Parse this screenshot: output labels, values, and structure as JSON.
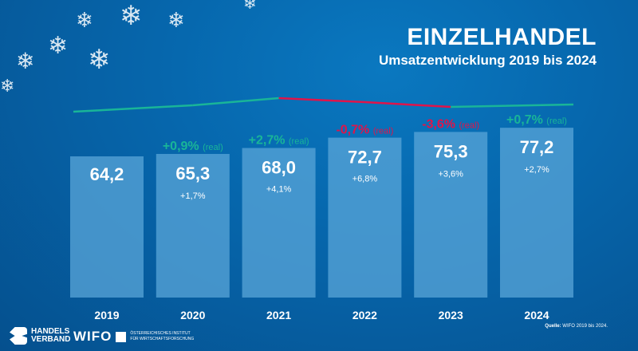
{
  "header": {
    "title": "EINZELHANDEL",
    "subtitle": "Umsatzentwicklung 2019 bis 2024"
  },
  "colors": {
    "bar": "#5aa6d8",
    "positive": "#19b598",
    "negative": "#e0144a",
    "text": "#ffffff"
  },
  "chart_data": {
    "type": "bar",
    "title": "EINZELHANDEL – Umsatzentwicklung 2019 bis 2024",
    "categories": [
      "2019",
      "2020",
      "2021",
      "2022",
      "2023",
      "2024"
    ],
    "values": [
      64.2,
      65.3,
      68.0,
      72.7,
      75.3,
      77.2
    ],
    "value_labels": [
      "64,2",
      "65,3",
      "68,0",
      "72,7",
      "75,3",
      "77,2"
    ],
    "nominal_change": [
      null,
      "+1,7%",
      "+4,1%",
      "+6,8%",
      "+3,6%",
      "+2,7%"
    ],
    "real_change": [
      null,
      "+0,9%",
      "+2,7%",
      "-0,7%",
      "-3,6%",
      "+0,7%"
    ],
    "real_change_values": [
      null,
      0.9,
      2.7,
      -0.7,
      -3.6,
      0.7
    ],
    "real_suffix": "(real)",
    "ylim": [
      0,
      80
    ],
    "grid": false,
    "legend": "none"
  },
  "footer": {
    "logo1": "HANDELS VERBAND",
    "logo2_mark": "WIFO",
    "logo2_line1": "ÖSTERREICHISCHES INSTITUT",
    "logo2_line2": "FÜR WIRTSCHAFTSFORSCHUNG",
    "source_label": "Quelle:",
    "source_text": "WIFO 2019 bis 2024."
  }
}
